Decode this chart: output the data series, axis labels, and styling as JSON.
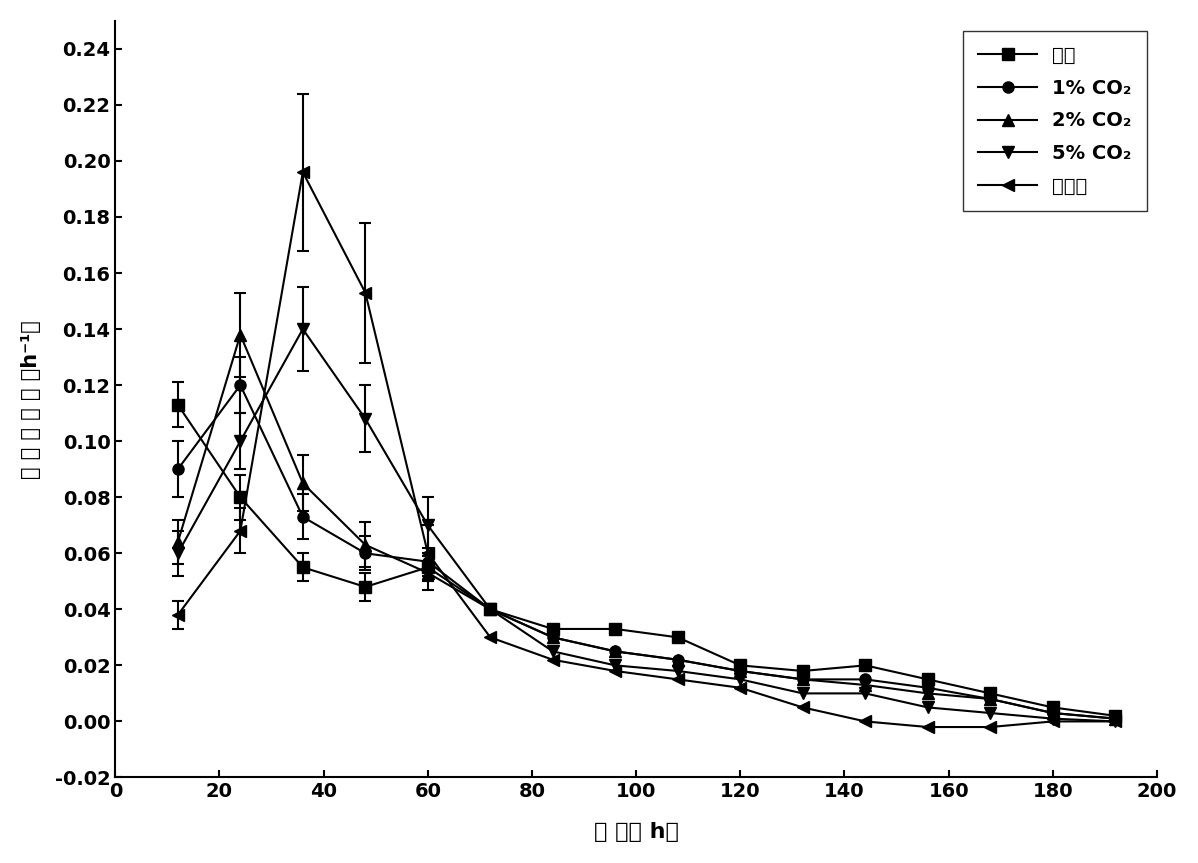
{
  "series": [
    {
      "label": "空气",
      "marker": "s",
      "x": [
        12,
        24,
        36,
        48,
        60,
        72,
        84,
        96,
        108,
        120,
        132,
        144,
        156,
        168,
        180,
        192
      ],
      "y": [
        0.113,
        0.08,
        0.055,
        0.048,
        0.055,
        0.04,
        0.033,
        0.033,
        0.03,
        0.02,
        0.018,
        0.02,
        0.015,
        0.01,
        0.005,
        0.002
      ],
      "yerr": [
        0.008,
        0.008,
        0.005,
        0.005,
        0.005,
        null,
        null,
        null,
        null,
        null,
        null,
        null,
        null,
        null,
        null,
        null
      ]
    },
    {
      "label": "1% CO₂",
      "marker": "o",
      "x": [
        12,
        24,
        36,
        48,
        60,
        72,
        84,
        96,
        108,
        120,
        132,
        144,
        156,
        168,
        180,
        192
      ],
      "y": [
        0.09,
        0.12,
        0.073,
        0.06,
        0.057,
        0.04,
        0.03,
        0.025,
        0.022,
        0.018,
        0.015,
        0.015,
        0.012,
        0.008,
        0.003,
        0.001
      ],
      "yerr": [
        0.01,
        0.01,
        0.008,
        0.006,
        0.005,
        null,
        null,
        null,
        null,
        null,
        null,
        null,
        null,
        null,
        null,
        null
      ]
    },
    {
      "label": "2% CO₂",
      "marker": "^",
      "x": [
        12,
        24,
        36,
        48,
        60,
        72,
        84,
        96,
        108,
        120,
        132,
        144,
        156,
        168,
        180,
        192
      ],
      "y": [
        0.064,
        0.138,
        0.085,
        0.063,
        0.053,
        0.04,
        0.03,
        0.025,
        0.022,
        0.018,
        0.015,
        0.013,
        0.01,
        0.008,
        0.003,
        0.001
      ],
      "yerr": [
        0.008,
        0.015,
        0.01,
        0.008,
        0.006,
        null,
        null,
        null,
        null,
        null,
        null,
        null,
        null,
        null,
        null,
        null
      ]
    },
    {
      "label": "5% CO₂",
      "marker": "v",
      "x": [
        12,
        24,
        36,
        48,
        60,
        72,
        84,
        96,
        108,
        120,
        132,
        144,
        156,
        168,
        180,
        192
      ],
      "y": [
        0.06,
        0.1,
        0.14,
        0.108,
        0.07,
        0.04,
        0.025,
        0.02,
        0.018,
        0.015,
        0.01,
        0.01,
        0.005,
        0.003,
        0.001,
        0.0
      ],
      "yerr": [
        0.008,
        0.01,
        0.015,
        0.012,
        0.01,
        null,
        null,
        null,
        null,
        null,
        null,
        null,
        null,
        null,
        null,
        null
      ]
    },
    {
      "label": "葡萄糖",
      "marker": "<",
      "x": [
        12,
        24,
        36,
        48,
        60,
        72,
        84,
        96,
        108,
        120,
        132,
        144,
        156,
        168,
        180,
        192
      ],
      "y": [
        0.038,
        0.068,
        0.196,
        0.153,
        0.06,
        0.03,
        0.022,
        0.018,
        0.015,
        0.012,
        0.005,
        0.0,
        -0.002,
        -0.002,
        0.0,
        0.0
      ],
      "yerr": [
        0.005,
        0.008,
        0.028,
        0.025,
        0.01,
        null,
        null,
        null,
        null,
        null,
        null,
        null,
        null,
        null,
        null,
        null
      ]
    }
  ],
  "xlabel": "时 间（ h）",
  "ylabel": "比 生 长 速 率 （h⁻¹）",
  "xlim": [
    0,
    200
  ],
  "ylim": [
    -0.02,
    0.25
  ],
  "xticks": [
    0,
    20,
    40,
    60,
    80,
    100,
    120,
    140,
    160,
    180,
    200
  ],
  "yticks": [
    -0.02,
    0.0,
    0.02,
    0.04,
    0.06,
    0.08,
    0.1,
    0.12,
    0.14,
    0.16,
    0.18,
    0.2,
    0.22,
    0.24
  ],
  "line_color": "#000000",
  "marker_size": 8,
  "line_width": 1.5,
  "legend_loc": "upper right",
  "background_color": "#ffffff"
}
